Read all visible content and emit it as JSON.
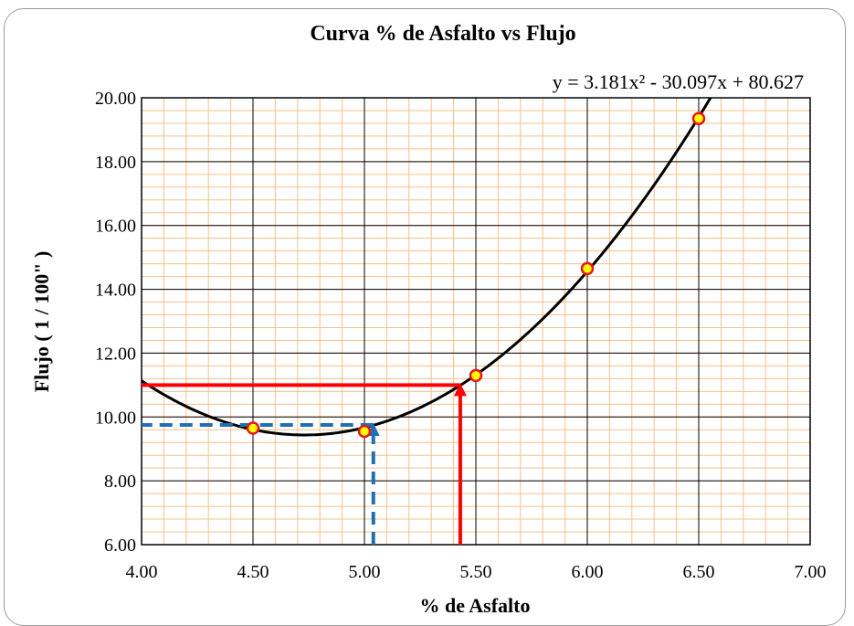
{
  "chart_data": {
    "type": "scatter",
    "title": "Curva % de Asfalto vs Flujo",
    "xlabel": "% de Asfalto",
    "ylabel": "Flujo ( 1 / 100\" )",
    "xlim": [
      4.0,
      7.0
    ],
    "ylim": [
      6.0,
      20.0
    ],
    "x_ticks": [
      "4.00",
      "4.50",
      "5.00",
      "5.50",
      "6.00",
      "6.50",
      "7.00"
    ],
    "y_ticks": [
      "6.00",
      "8.00",
      "10.00",
      "12.00",
      "14.00",
      "16.00",
      "18.00",
      "20.00"
    ],
    "minor_grid": true,
    "grid": true,
    "points": [
      {
        "x": 4.5,
        "y": 9.65
      },
      {
        "x": 5.0,
        "y": 9.55
      },
      {
        "x": 5.5,
        "y": 11.3
      },
      {
        "x": 6.0,
        "y": 14.65
      },
      {
        "x": 6.5,
        "y": 19.35
      }
    ],
    "trendline": {
      "equation": "y = 3.181x² - 30.097x + 80.627",
      "a": 3.181,
      "b": -30.097,
      "c": 80.627
    },
    "reference_lines": [
      {
        "style": "solid",
        "color": "#ff0000",
        "x": 5.43,
        "y": 11.0
      },
      {
        "style": "dashed",
        "color": "#1f6fb5",
        "x": 5.04,
        "y": 9.75
      }
    ],
    "colors": {
      "marker_fill": "#ffff00",
      "marker_edge": "#e8141c",
      "curve": "#000000",
      "major_grid": "#000000",
      "minor_grid": "#f5c08a",
      "frame_border": "#9a9a9a"
    }
  }
}
